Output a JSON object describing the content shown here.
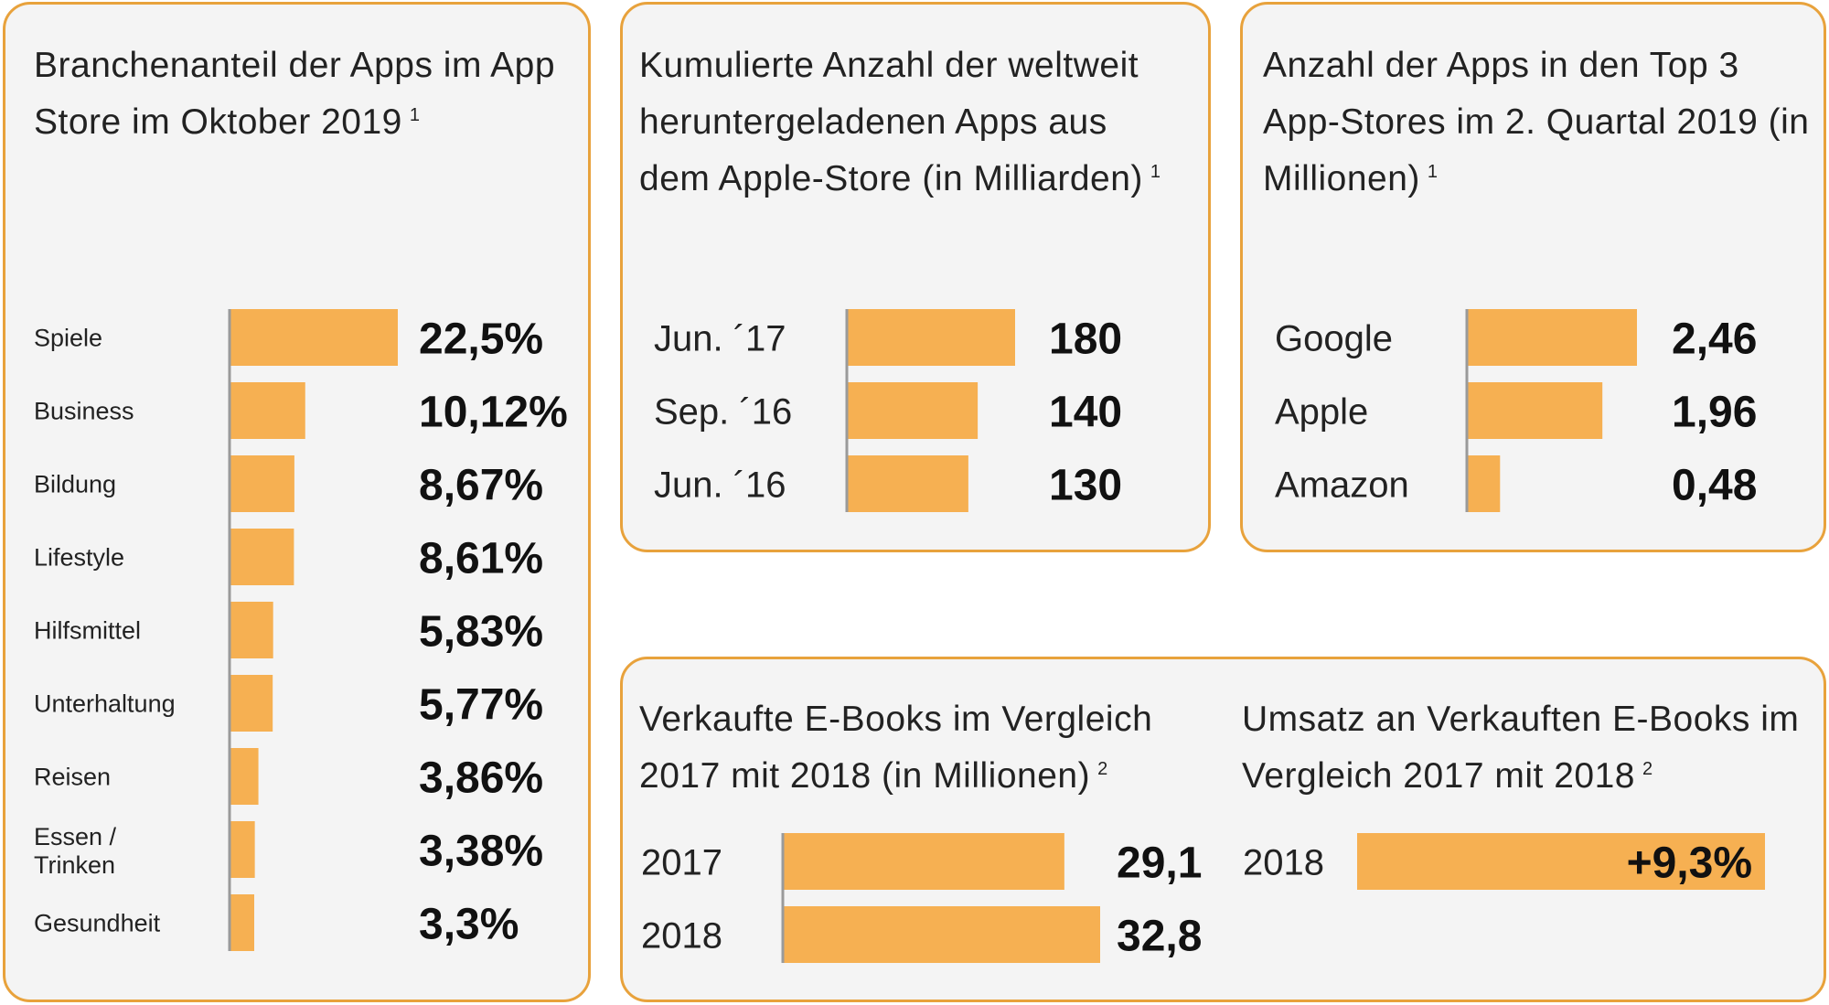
{
  "chart_data": [
    {
      "type": "bar",
      "orientation": "horizontal",
      "title": "Branchenanteil der Apps im App Store im Oktober 2019",
      "footnote": "1",
      "categories": [
        "Spiele",
        "Business",
        "Bildung",
        "Lifestyle",
        "Hilfsmittel",
        "Unterhaltung",
        "Reisen",
        "Essen / Trinken",
        "Gesundheit"
      ],
      "values": [
        22.5,
        10.12,
        8.67,
        8.61,
        5.83,
        5.77,
        3.86,
        3.38,
        3.3
      ],
      "labels": [
        "22,5%",
        "10,12%",
        "8,67%",
        "8,61%",
        "5,83%",
        "5,77%",
        "3,86%",
        "3,38%",
        "3,3%"
      ],
      "xlim": [
        0,
        22.5
      ],
      "color": "#f6b052"
    },
    {
      "type": "bar",
      "orientation": "horizontal",
      "title": "Kumulierte Anzahl der weltweit heruntergeladenen Apps aus dem Apple-Store (in Milliarden)",
      "footnote": "1",
      "categories": [
        "Jun. ´17",
        "Sep. ´16",
        "Jun. ´16"
      ],
      "values": [
        180,
        140,
        130
      ],
      "labels": [
        "180",
        "140",
        "130"
      ],
      "xlim": [
        0,
        180
      ],
      "color": "#f6b052"
    },
    {
      "type": "bar",
      "orientation": "horizontal",
      "title": "Anzahl der Apps in den Top 3 App-Stores im 2. Quartal 2019 (in Millionen)",
      "footnote": "1",
      "categories": [
        "Google",
        "Apple",
        "Amazon"
      ],
      "values": [
        2.46,
        1.96,
        0.48
      ],
      "labels": [
        "2,46",
        "1,96",
        "0,48"
      ],
      "xlim": [
        0,
        2.46
      ],
      "color": "#f6b052"
    },
    {
      "type": "bar",
      "orientation": "horizontal",
      "title": "Verkaufte E-Books im Vergleich 2017 mit 2018 (in Millionen)",
      "footnote": "2",
      "categories": [
        "2017",
        "2018"
      ],
      "values": [
        29.1,
        32.8
      ],
      "labels": [
        "29,1",
        "32,8"
      ],
      "xlim": [
        0,
        32.8
      ],
      "color": "#f6b052"
    },
    {
      "type": "bar",
      "orientation": "horizontal",
      "title": "Umsatz an Verkauften E-Books im Vergleich 2017 mit 2018",
      "footnote": "2",
      "categories": [
        "2018"
      ],
      "values": [
        9.3
      ],
      "labels": [
        "+9,3%"
      ],
      "color": "#f6b052"
    }
  ]
}
